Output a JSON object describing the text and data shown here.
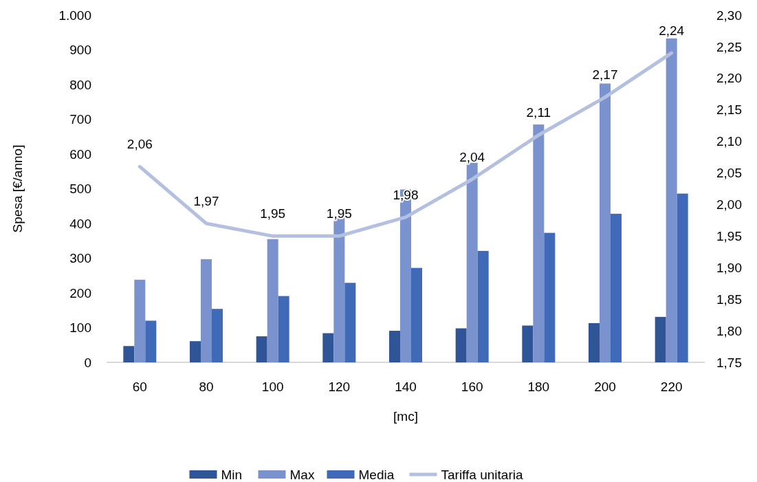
{
  "chart_data": {
    "type": "bar",
    "xlabel": "[mc]",
    "ylabel": "Spesa [€/anno]",
    "categories": [
      "60",
      "80",
      "100",
      "120",
      "140",
      "160",
      "180",
      "200",
      "220"
    ],
    "series": [
      {
        "name": "Min",
        "color": "#2f5597",
        "values": [
          47,
          61,
          75,
          84,
          91,
          98,
          106,
          113,
          131
        ]
      },
      {
        "name": "Max",
        "color": "#7a93cf",
        "values": [
          238,
          297,
          355,
          424,
          498,
          575,
          685,
          803,
          933
        ]
      },
      {
        "name": "Media",
        "color": "#4069b8",
        "values": [
          120,
          154,
          191,
          229,
          272,
          321,
          373,
          428,
          486
        ]
      },
      {
        "name": "Tariffa unitaria",
        "type": "line",
        "axis": "y2",
        "color": "#b4c0e0",
        "values": [
          2.06,
          1.97,
          1.95,
          1.95,
          1.98,
          2.04,
          2.11,
          2.17,
          2.24
        ],
        "value_labels": [
          "2,06",
          "1,97",
          "1,95",
          "1,95",
          "1,98",
          "2,04",
          "2,11",
          "2,17",
          "2,24"
        ]
      }
    ],
    "ylim": [
      0,
      1000
    ],
    "yticks": [
      0,
      100,
      200,
      300,
      400,
      500,
      600,
      700,
      800,
      900,
      {
        "value": 1000,
        "label": "1.000"
      }
    ],
    "y2lim": [
      1.75,
      2.3
    ],
    "y2ticks": [
      {
        "value": 1.75,
        "label": "1,75"
      },
      {
        "value": 1.8,
        "label": "1,80"
      },
      {
        "value": 1.85,
        "label": "1,85"
      },
      {
        "value": 1.9,
        "label": "1,90"
      },
      {
        "value": 1.95,
        "label": "1,95"
      },
      {
        "value": 2.0,
        "label": "2,00"
      },
      {
        "value": 2.05,
        "label": "2,05"
      },
      {
        "value": 2.1,
        "label": "2,10"
      },
      {
        "value": 2.15,
        "label": "2,15"
      },
      {
        "value": 2.2,
        "label": "2,20"
      },
      {
        "value": 2.25,
        "label": "2,25"
      },
      {
        "value": 2.3,
        "label": "2,30"
      }
    ],
    "grid": false,
    "legend": "bottom"
  }
}
